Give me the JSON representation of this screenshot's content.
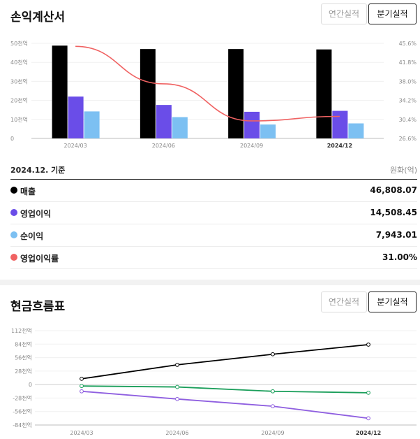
{
  "income": {
    "title": "손익계산서",
    "tabs": [
      {
        "label": "연간실적",
        "active": false
      },
      {
        "label": "분기실적",
        "active": true
      }
    ],
    "chart_data": {
      "type": "bar",
      "categories": [
        "2024/03",
        "2024/06",
        "2024/09",
        "2024/12"
      ],
      "series": [
        {
          "name": "매출",
          "color": "#000000",
          "values": [
            48.8,
            47.0,
            47.0,
            46.8
          ]
        },
        {
          "name": "영업이익",
          "color": "#6a4de8",
          "values": [
            22.0,
            17.6,
            14.0,
            14.5
          ]
        },
        {
          "name": "순이익",
          "color": "#7cc0f2",
          "values": [
            14.2,
            11.2,
            7.3,
            7.9
          ]
        },
        {
          "name": "영업이익률",
          "color": "#f06262",
          "type": "line",
          "axis": "right",
          "values": [
            45.0,
            37.5,
            30.1,
            31.0
          ]
        }
      ],
      "y_left_ticks": [
        "0",
        "10천억",
        "20천억",
        "30천억",
        "40천억",
        "50천억"
      ],
      "y_left_range": [
        0,
        50
      ],
      "y_right_ticks": [
        "26.6%",
        "30.4%",
        "34.2%",
        "38.0%",
        "41.8%",
        "45.6%"
      ],
      "y_right_range": [
        26.6,
        45.6
      ],
      "grid": true
    },
    "table": {
      "basis": "2024.12. 기준",
      "unit": "원화(억)",
      "rows": [
        {
          "label": "매출",
          "value": "46,808.07",
          "color": "#000000"
        },
        {
          "label": "영업이익",
          "value": "14,508.45",
          "color": "#6a4de8"
        },
        {
          "label": "순이익",
          "value": "7,943.01",
          "color": "#7cc0f2"
        },
        {
          "label": "영업이익률",
          "value": "31.00%",
          "color": "#f06262"
        }
      ]
    }
  },
  "cashflow": {
    "title": "현금흐름표",
    "tabs": [
      {
        "label": "연간실적",
        "active": false
      },
      {
        "label": "분기실적",
        "active": true
      }
    ],
    "chart_data": {
      "type": "line",
      "categories": [
        "2024/03",
        "2024/06",
        "2024/09",
        "2024/12"
      ],
      "series": [
        {
          "color": "#000000",
          "values": [
            12,
            41,
            63,
            83
          ]
        },
        {
          "color": "#1a9e5a",
          "values": [
            -3,
            -5,
            -14,
            -17
          ]
        },
        {
          "color": "#8f5fe0",
          "values": [
            -14,
            -30,
            -45,
            -70
          ]
        }
      ],
      "y_ticks": [
        "112천억",
        "84천억",
        "56천억",
        "28천억",
        "0",
        "-28천억",
        "-56천억",
        "-84천억"
      ],
      "y_range": [
        -84,
        112
      ],
      "grid": true
    }
  }
}
